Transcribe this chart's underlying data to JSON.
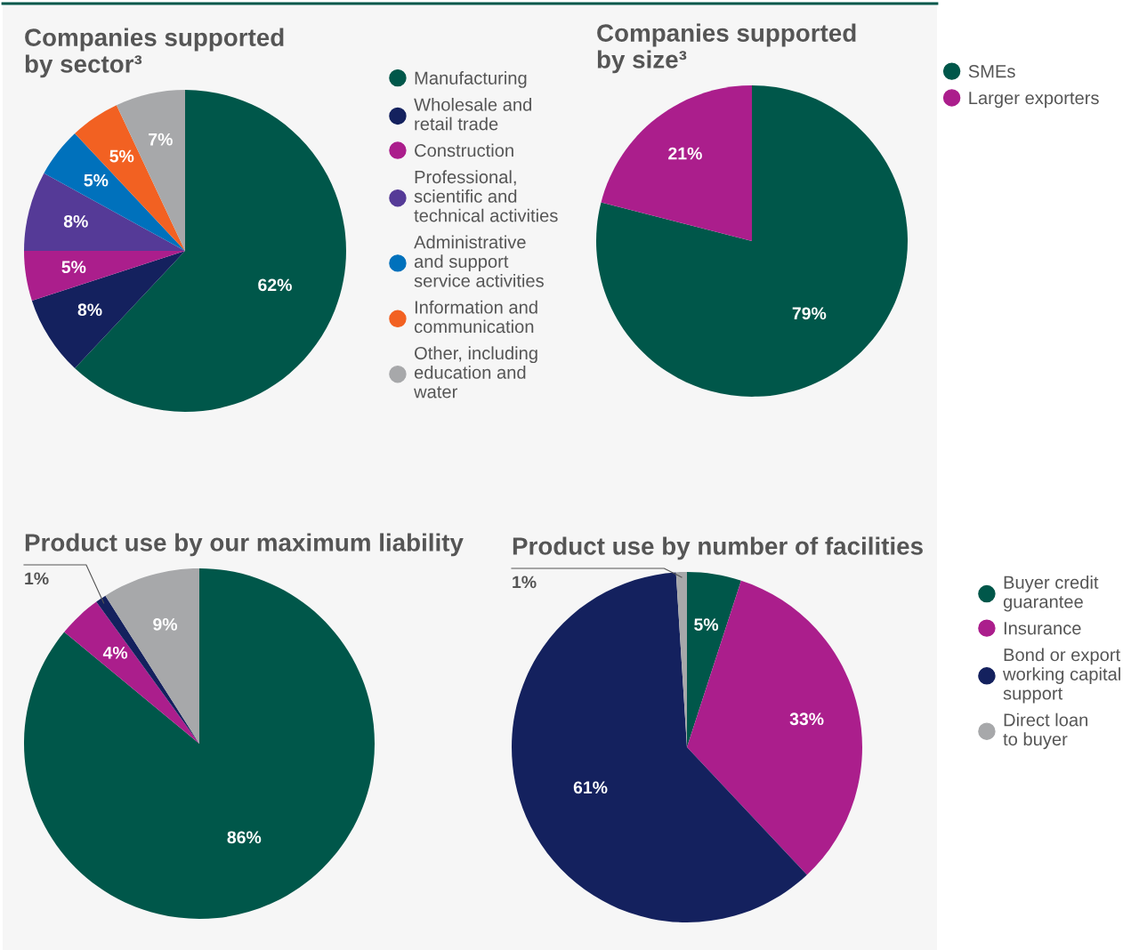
{
  "chart_data": [
    {
      "type": "pie",
      "title": "Companies supported\nby sector³",
      "categories": [
        "Manufacturing",
        "Wholesale and\nretail trade",
        "Construction",
        "Professional,\nscientific and\ntechnical activities",
        "Administrative\nand support\nservice activities",
        "Information and\ncommunication",
        "Other, including\neducation and\nwater"
      ],
      "values": [
        62,
        8,
        5,
        8,
        5,
        5,
        7
      ],
      "value_labels": [
        "62%",
        "8%",
        "5%",
        "8%",
        "5%",
        "5%",
        "7%"
      ],
      "colors": [
        "#00574a",
        "#14215e",
        "#ab1e8c",
        "#553a97",
        "#0071bc",
        "#f26122",
        "#a7a8aa"
      ],
      "legend": "right"
    },
    {
      "type": "pie",
      "title": "Companies supported\nby size³",
      "categories": [
        "SMEs",
        "Larger exporters"
      ],
      "values": [
        79,
        21
      ],
      "value_labels": [
        "79%",
        "21%"
      ],
      "colors": [
        "#00574a",
        "#ab1e8c"
      ],
      "legend": "right"
    },
    {
      "type": "pie",
      "title": "Product use by our maximum liability",
      "categories": [
        "Buyer credit\nguarantee",
        "Insurance",
        "Bond or export\nworking capital\nsupport",
        "Direct loan\nto buyer"
      ],
      "values": [
        86,
        4,
        1,
        9
      ],
      "value_labels": [
        "86%",
        "4%",
        "1%",
        "9%"
      ],
      "colors": [
        "#00574a",
        "#ab1e8c",
        "#14215e",
        "#a7a8aa"
      ],
      "legend": "right"
    },
    {
      "type": "pie",
      "title": "Product use by number of facilities",
      "categories": [
        null,
        null,
        null,
        null
      ],
      "values": [
        5,
        33,
        61,
        1
      ],
      "value_labels": [
        "5%",
        "33%",
        "61%",
        "1%"
      ],
      "colors": [
        "#00574a",
        "#ab1e8c",
        "#14215e",
        "#a7a8aa"
      ],
      "legend": false
    }
  ]
}
